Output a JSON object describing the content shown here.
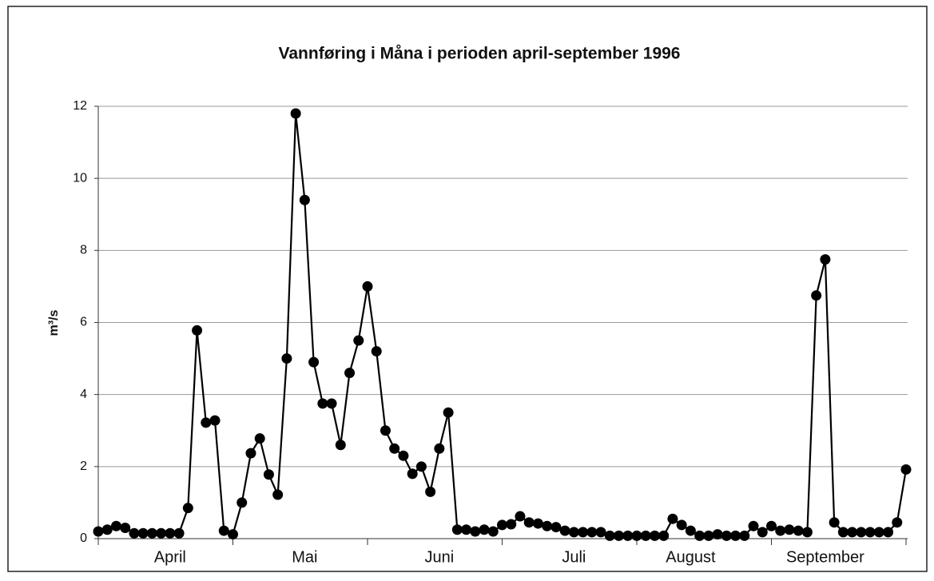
{
  "chart_data": {
    "type": "line",
    "title": "Vannføring i Måna i perioden april-september 1996",
    "ylabel": "m³/s",
    "categories": [
      null,
      null,
      null,
      null,
      null,
      null,
      null,
      null,
      "April",
      null,
      null,
      null,
      null,
      null,
      null,
      null,
      null,
      null,
      null,
      null,
      null,
      null,
      null,
      "Mai",
      null,
      null,
      null,
      null,
      null,
      null,
      null,
      null,
      null,
      null,
      null,
      null,
      null,
      null,
      "Juni",
      null,
      null,
      null,
      null,
      null,
      null,
      null,
      null,
      null,
      null,
      null,
      null,
      null,
      null,
      "Juli",
      null,
      null,
      null,
      null,
      null,
      null,
      null,
      null,
      null,
      null,
      null,
      null,
      "August",
      null,
      null,
      null,
      null,
      null,
      null,
      null,
      null,
      null,
      null,
      null,
      null,
      null,
      null,
      "September",
      null,
      null,
      null,
      null,
      null,
      null,
      null,
      null,
      null
    ],
    "series": [
      {
        "name": "Vannføring",
        "color": "#000000",
        "values": [
          0.2,
          0.25,
          0.35,
          0.3,
          0.15,
          0.15,
          0.15,
          0.15,
          0.15,
          0.15,
          0.85,
          5.78,
          3.22,
          3.28,
          0.22,
          0.12,
          1.0,
          2.37,
          2.78,
          1.78,
          1.22,
          5.0,
          11.8,
          9.4,
          4.9,
          3.75,
          3.75,
          2.6,
          4.6,
          5.5,
          7.0,
          5.2,
          3.0,
          2.5,
          2.3,
          1.8,
          2.0,
          1.3,
          2.5,
          3.5,
          0.25,
          0.25,
          0.2,
          0.25,
          0.2,
          0.38,
          0.4,
          0.62,
          0.45,
          0.42,
          0.35,
          0.32,
          0.22,
          0.18,
          0.18,
          0.18,
          0.18,
          0.08,
          0.08,
          0.08,
          0.08,
          0.08,
          0.08,
          0.08,
          0.55,
          0.38,
          0.22,
          0.08,
          0.08,
          0.12,
          0.08,
          0.08,
          0.08,
          0.35,
          0.18,
          0.35,
          0.22,
          0.25,
          0.22,
          0.18,
          6.75,
          7.75,
          0.45,
          0.18,
          0.18,
          0.18,
          0.18,
          0.18,
          0.18,
          0.45,
          1.92
        ]
      }
    ],
    "ylim": [
      0,
      12
    ],
    "yticks": [
      0,
      2,
      4,
      6,
      8,
      10,
      12
    ],
    "grid": true
  }
}
